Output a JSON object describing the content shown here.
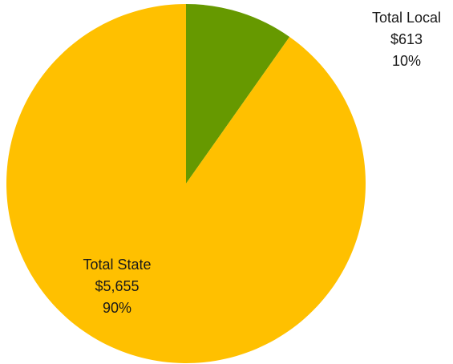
{
  "chart_data": {
    "type": "pie",
    "colors": {
      "local": "#669900",
      "state": "#ffc000"
    },
    "slices": [
      {
        "key": "local",
        "name": "Total Local",
        "value": 613,
        "value_label": "$613",
        "percent": 10,
        "percent_label": "10%"
      },
      {
        "key": "state",
        "name": "Total State",
        "value": 5655,
        "value_label": "$5,655",
        "percent": 90,
        "percent_label": "90%"
      }
    ]
  }
}
